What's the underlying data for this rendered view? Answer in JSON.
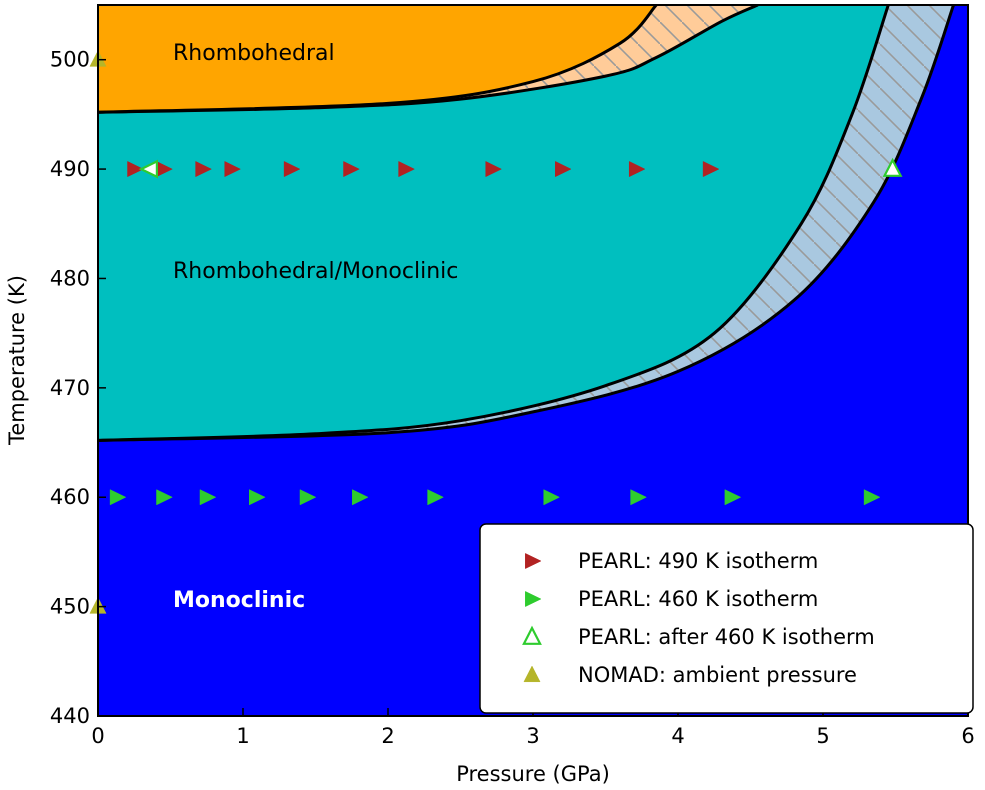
{
  "chart_data": {
    "type": "scatter",
    "xlabel": "Pressure (GPa)",
    "ylabel": "Temperature (K)",
    "xlim": [
      0,
      6
    ],
    "ylim": [
      440,
      505
    ],
    "x_ticks": [
      "0",
      "1",
      "2",
      "3",
      "4",
      "5",
      "6"
    ],
    "y_ticks": [
      "440",
      "450",
      "460",
      "470",
      "480",
      "490",
      "500"
    ],
    "grid": false,
    "legend_position": "lower-right",
    "regions": [
      {
        "label": "Rhombohedral",
        "color": "#ffa500"
      },
      {
        "label": "Rhombohedral/Monoclinic",
        "color": "#00bfbf"
      },
      {
        "label": "Monoclinic",
        "color": "#0000ff"
      }
    ],
    "boundaries": {
      "rhombo_lower": [
        [
          0,
          495.2
        ],
        [
          1.5,
          495.6
        ],
        [
          2.5,
          496.4
        ],
        [
          3.5,
          498.5
        ],
        [
          3.85,
          500.2
        ],
        [
          4.3,
          503.5
        ],
        [
          4.55,
          505
        ]
      ],
      "rhombo_upper": [
        [
          0,
          495.2
        ],
        [
          2.0,
          496.0
        ],
        [
          3.0,
          498.0
        ],
        [
          3.6,
          501.5
        ],
        [
          3.85,
          505
        ]
      ],
      "mono_upper": [
        [
          0,
          465.2
        ],
        [
          1.5,
          465.8
        ],
        [
          2.5,
          467.0
        ],
        [
          3.5,
          470.2
        ],
        [
          4.25,
          475.0
        ],
        [
          4.85,
          485.0
        ],
        [
          5.2,
          495.0
        ],
        [
          5.45,
          505
        ]
      ],
      "mono_lower": [
        [
          0,
          465.2
        ],
        [
          2.0,
          465.9
        ],
        [
          3.0,
          467.8
        ],
        [
          4.0,
          471.5
        ],
        [
          4.8,
          478.0
        ],
        [
          5.35,
          487.0
        ],
        [
          5.68,
          496.5
        ],
        [
          5.9,
          505
        ]
      ]
    },
    "series": [
      {
        "name": "PEARL: 490 K isotherm",
        "marker": "right-triangle",
        "color": "#b22222",
        "x": [
          0.25,
          0.45,
          0.72,
          0.92,
          1.33,
          1.74,
          2.12,
          2.72,
          3.2,
          3.71,
          4.22
        ],
        "y": [
          490,
          490,
          490,
          490,
          490,
          490,
          490,
          490,
          490,
          490,
          490
        ]
      },
      {
        "name": "PEARL: 460 K isotherm",
        "marker": "right-triangle",
        "color": "#2ecc2e",
        "x": [
          0.13,
          0.45,
          0.75,
          1.09,
          1.44,
          1.8,
          2.32,
          3.12,
          3.72,
          4.37,
          5.33
        ],
        "y": [
          460,
          460,
          460,
          460,
          460,
          460,
          460,
          460,
          460,
          460,
          460
        ]
      },
      {
        "name": "PEARL: after 460 K isotherm",
        "marker": "left-triangle-open",
        "color": "#2ecc2e",
        "x": [
          0.36
        ],
        "y": [
          490
        ]
      },
      {
        "name": "PEARL: after 460 K isotherm",
        "marker": "up-triangle-open",
        "color": "#2ecc2e",
        "x": [
          5.48
        ],
        "y": [
          490
        ]
      },
      {
        "name": "NOMAD: ambient pressure",
        "marker": "up-triangle",
        "color": "#b5b52a",
        "x": [
          0,
          0
        ],
        "y": [
          500,
          450
        ]
      }
    ],
    "legend": [
      {
        "label": "PEARL: 490 K isotherm",
        "marker": "right-triangle",
        "color": "#b22222"
      },
      {
        "label": "PEARL: 460 K isotherm",
        "marker": "right-triangle",
        "color": "#2ecc2e"
      },
      {
        "label": "PEARL: after 460 K isotherm",
        "marker": "up-triangle-open",
        "color": "#2ecc2e"
      },
      {
        "label": "NOMAD: ambient pressure",
        "marker": "up-triangle",
        "color": "#b5b52a"
      }
    ]
  }
}
